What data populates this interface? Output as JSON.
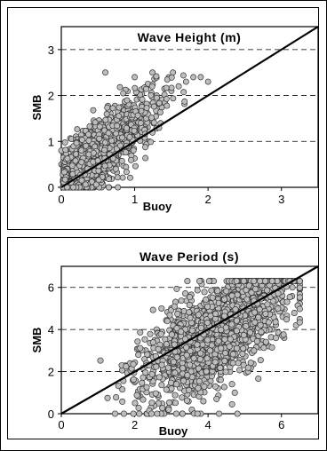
{
  "chart_data": [
    {
      "type": "scatter",
      "title": "Wave Height (m)",
      "xlabel": "Buoy",
      "ylabel": "SMB",
      "xlim": [
        0,
        3.5
      ],
      "ylim": [
        0,
        3.5
      ],
      "xticks": [
        0,
        1,
        2,
        3
      ],
      "yticks": [
        0,
        1,
        2,
        3
      ],
      "grid": "horizontal-dashed",
      "reference_line": {
        "from": [
          0,
          0
        ],
        "to": [
          3.5,
          3.5
        ]
      },
      "cluster": {
        "x_center": 0.55,
        "x_spread": 0.45,
        "slope": 1.4,
        "y_noise": 0.35,
        "x_max": 2.2,
        "y_max": 2.5
      },
      "points": [
        [
          0.1,
          0.1
        ],
        [
          0.2,
          0.3
        ],
        [
          0.3,
          0.2
        ],
        [
          0.4,
          0.6
        ],
        [
          0.5,
          0.5
        ],
        [
          0.6,
          0.9
        ],
        [
          0.7,
          1.0
        ],
        [
          0.8,
          1.2
        ],
        [
          0.9,
          1.4
        ],
        [
          1.0,
          1.5
        ],
        [
          1.1,
          1.7
        ],
        [
          1.2,
          1.8
        ],
        [
          1.3,
          2.0
        ],
        [
          1.4,
          1.9
        ],
        [
          1.5,
          2.1
        ],
        [
          1.6,
          2.2
        ],
        [
          1.7,
          2.3
        ],
        [
          1.8,
          2.4
        ],
        [
          1.9,
          2.4
        ],
        [
          2.0,
          2.3
        ],
        [
          0.05,
          0.0
        ],
        [
          0.15,
          0.0
        ],
        [
          0.25,
          0.0
        ],
        [
          0.35,
          0.0
        ],
        [
          0.45,
          0.0
        ],
        [
          0.55,
          0.0
        ],
        [
          0.65,
          0.0
        ],
        [
          0.0,
          0.5
        ],
        [
          0.0,
          0.8
        ],
        [
          0.6,
          2.5
        ],
        [
          1.0,
          2.4
        ],
        [
          1.2,
          1.0
        ]
      ]
    },
    {
      "type": "scatter",
      "title": "Wave Period (s)",
      "xlabel": "Buoy",
      "ylabel": "SMB",
      "xlim": [
        0,
        7
      ],
      "ylim": [
        0,
        7
      ],
      "xticks": [
        0,
        2,
        4,
        6
      ],
      "yticks": [
        0,
        2,
        4,
        6
      ],
      "grid": "horizontal-dashed",
      "reference_line": {
        "from": [
          0,
          0
        ],
        "to": [
          7,
          7
        ]
      },
      "cluster": {
        "x_center": 4.2,
        "x_spread": 1.0,
        "slope": 1.0,
        "y_noise": 1.2,
        "x_max": 6.5,
        "y_max": 6.3
      },
      "points": [
        [
          2.0,
          1.5
        ],
        [
          2.5,
          2.0
        ],
        [
          3.0,
          2.5
        ],
        [
          3.5,
          3.0
        ],
        [
          4.0,
          3.5
        ],
        [
          4.5,
          4.0
        ],
        [
          5.0,
          4.5
        ],
        [
          5.5,
          5.0
        ],
        [
          6.0,
          5.5
        ],
        [
          6.3,
          6.0
        ],
        [
          3.2,
          4.5
        ],
        [
          4.8,
          5.8
        ],
        [
          5.8,
          6.1
        ],
        [
          2.3,
          3.0
        ],
        [
          2.8,
          0.0
        ],
        [
          3.3,
          0.0
        ],
        [
          3.8,
          0.0
        ],
        [
          4.3,
          0.0
        ],
        [
          4.8,
          0.0
        ],
        [
          2.4,
          0.0
        ],
        [
          2.1,
          2.8
        ],
        [
          3.6,
          1.2
        ],
        [
          4.6,
          2.0
        ],
        [
          5.2,
          3.0
        ],
        [
          6.4,
          4.2
        ],
        [
          6.0,
          6.2
        ],
        [
          3.0,
          5.0
        ],
        [
          2.6,
          4.0
        ]
      ]
    }
  ]
}
